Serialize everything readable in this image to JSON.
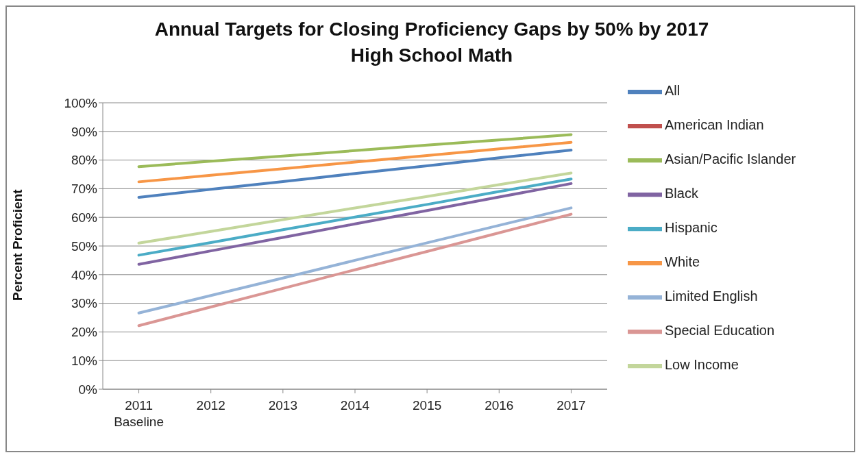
{
  "chart_data": {
    "type": "line",
    "title": "Annual Targets for Closing Proficiency Gaps by 50% by 2017",
    "subtitle": "High School Math",
    "ylabel": "Percent Proficient",
    "categories": [
      "2011\nBaseline",
      "2012",
      "2013",
      "2014",
      "2015",
      "2016",
      "2017"
    ],
    "series": [
      {
        "name": "All",
        "color": "#4f81bd",
        "values": [
          67,
          69.8,
          72.5,
          75.3,
          78,
          80.8,
          83.5
        ]
      },
      {
        "name": "American Indian",
        "color": "#c0504d",
        "values": [
          null,
          null,
          null,
          null,
          null,
          null,
          null
        ]
      },
      {
        "name": "Asian/Pacific Islander",
        "color": "#9bbb59",
        "values": [
          77.7,
          79.6,
          81.4,
          83.3,
          85.2,
          87.0,
          88.9
        ]
      },
      {
        "name": "Black",
        "color": "#8064a2",
        "values": [
          43.6,
          48.3,
          53.0,
          57.7,
          62.4,
          67.1,
          71.8
        ]
      },
      {
        "name": "Hispanic",
        "color": "#4bacc6",
        "values": [
          46.8,
          51.2,
          55.7,
          60.1,
          64.5,
          69.0,
          73.4
        ]
      },
      {
        "name": "White",
        "color": "#f79646",
        "values": [
          72.4,
          74.7,
          77.0,
          79.3,
          81.6,
          83.9,
          86.2
        ]
      },
      {
        "name": "Limited English",
        "color": "#95b3d7",
        "values": [
          26.6,
          32.7,
          38.8,
          45.0,
          51.1,
          57.2,
          63.3
        ]
      },
      {
        "name": "Special Education",
        "color": "#da9694",
        "values": [
          22.2,
          28.7,
          35.2,
          41.7,
          48.1,
          54.6,
          61.1
        ]
      },
      {
        "name": "Low Income",
        "color": "#c3d69b",
        "values": [
          51,
          55.1,
          59.2,
          63.3,
          67.3,
          71.4,
          75.5
        ]
      }
    ],
    "ylim": [
      0,
      100
    ],
    "yticks": [
      {
        "value": 0,
        "label": "0%"
      },
      {
        "value": 10,
        "label": "10%"
      },
      {
        "value": 20,
        "label": "20%"
      },
      {
        "value": 30,
        "label": "30%"
      },
      {
        "value": 40,
        "label": "40%"
      },
      {
        "value": 50,
        "label": "50%"
      },
      {
        "value": 60,
        "label": "60%"
      },
      {
        "value": 70,
        "label": "70%"
      },
      {
        "value": 80,
        "label": "80%"
      },
      {
        "value": 90,
        "label": "90%"
      },
      {
        "value": 100,
        "label": "100%"
      }
    ],
    "grid": "y",
    "legend": "right",
    "marker": "none",
    "line_style": "solid"
  }
}
